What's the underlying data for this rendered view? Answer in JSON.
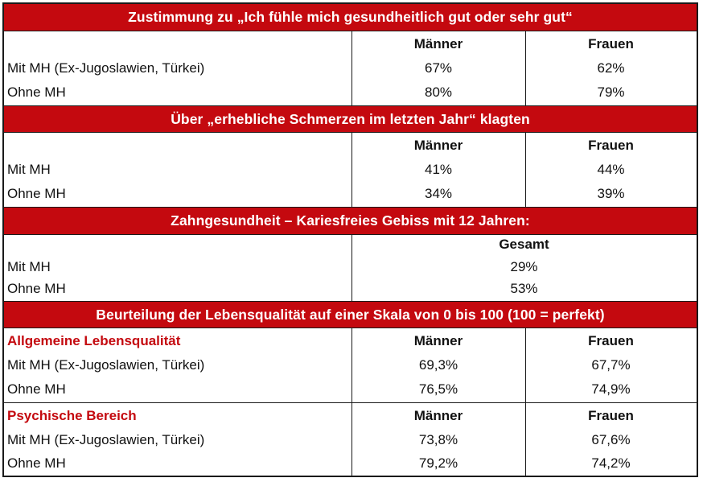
{
  "sections": [
    {
      "title": "Zustimmung zu „Ich fühle mich gesundheitlich gut oder sehr gut“",
      "col_men": "Männer",
      "col_women": "Frauen",
      "rows": [
        {
          "label": "Mit MH (Ex-Jugoslawien, Türkei)",
          "men": "67%",
          "women": "62%"
        },
        {
          "label": "Ohne MH",
          "men": "80%",
          "women": "79%"
        }
      ]
    },
    {
      "title": "Über „erhebliche Schmerzen im letzten Jahr“ klagten",
      "col_men": "Männer",
      "col_women": "Frauen",
      "rows": [
        {
          "label": "Mit MH",
          "men": "41%",
          "women": "44%"
        },
        {
          "label": "Ohne MH",
          "men": "34%",
          "women": "39%"
        }
      ]
    },
    {
      "title": "Zahngesundheit – Kariesfreies Gebiss mit 12 Jahren:",
      "col_total": "Gesamt",
      "rows": [
        {
          "label": "Mit MH",
          "total": "29%"
        },
        {
          "label": "Ohne MH",
          "total": "53%"
        }
      ]
    },
    {
      "title": "Beurteilung der Lebensqualität auf einer Skala von 0 bis 100 (100 = perfekt)",
      "subsections": [
        {
          "label": "Allgemeine Lebensqualität",
          "col_men": "Männer",
          "col_women": "Frauen",
          "rows": [
            {
              "label": "Mit MH (Ex-Jugoslawien, Türkei)",
              "men": "69,3%",
              "women": "67,7%"
            },
            {
              "label": "Ohne MH",
              "men": "76,5%",
              "women": "74,9%"
            }
          ]
        },
        {
          "label": "Psychische Bereich",
          "col_men": "Männer",
          "col_women": "Frauen",
          "rows": [
            {
              "label": "Mit MH (Ex-Jugoslawien, Türkei)",
              "men": "73,8%",
              "women": "67,6%"
            },
            {
              "label": "Ohne MH",
              "men": "79,2%",
              "women": "74,2%"
            }
          ]
        }
      ]
    }
  ],
  "colors": {
    "band": "#c4090f",
    "band_text": "#ffffff",
    "subsection_label": "#c4090f",
    "border": "#1a1a1a"
  }
}
